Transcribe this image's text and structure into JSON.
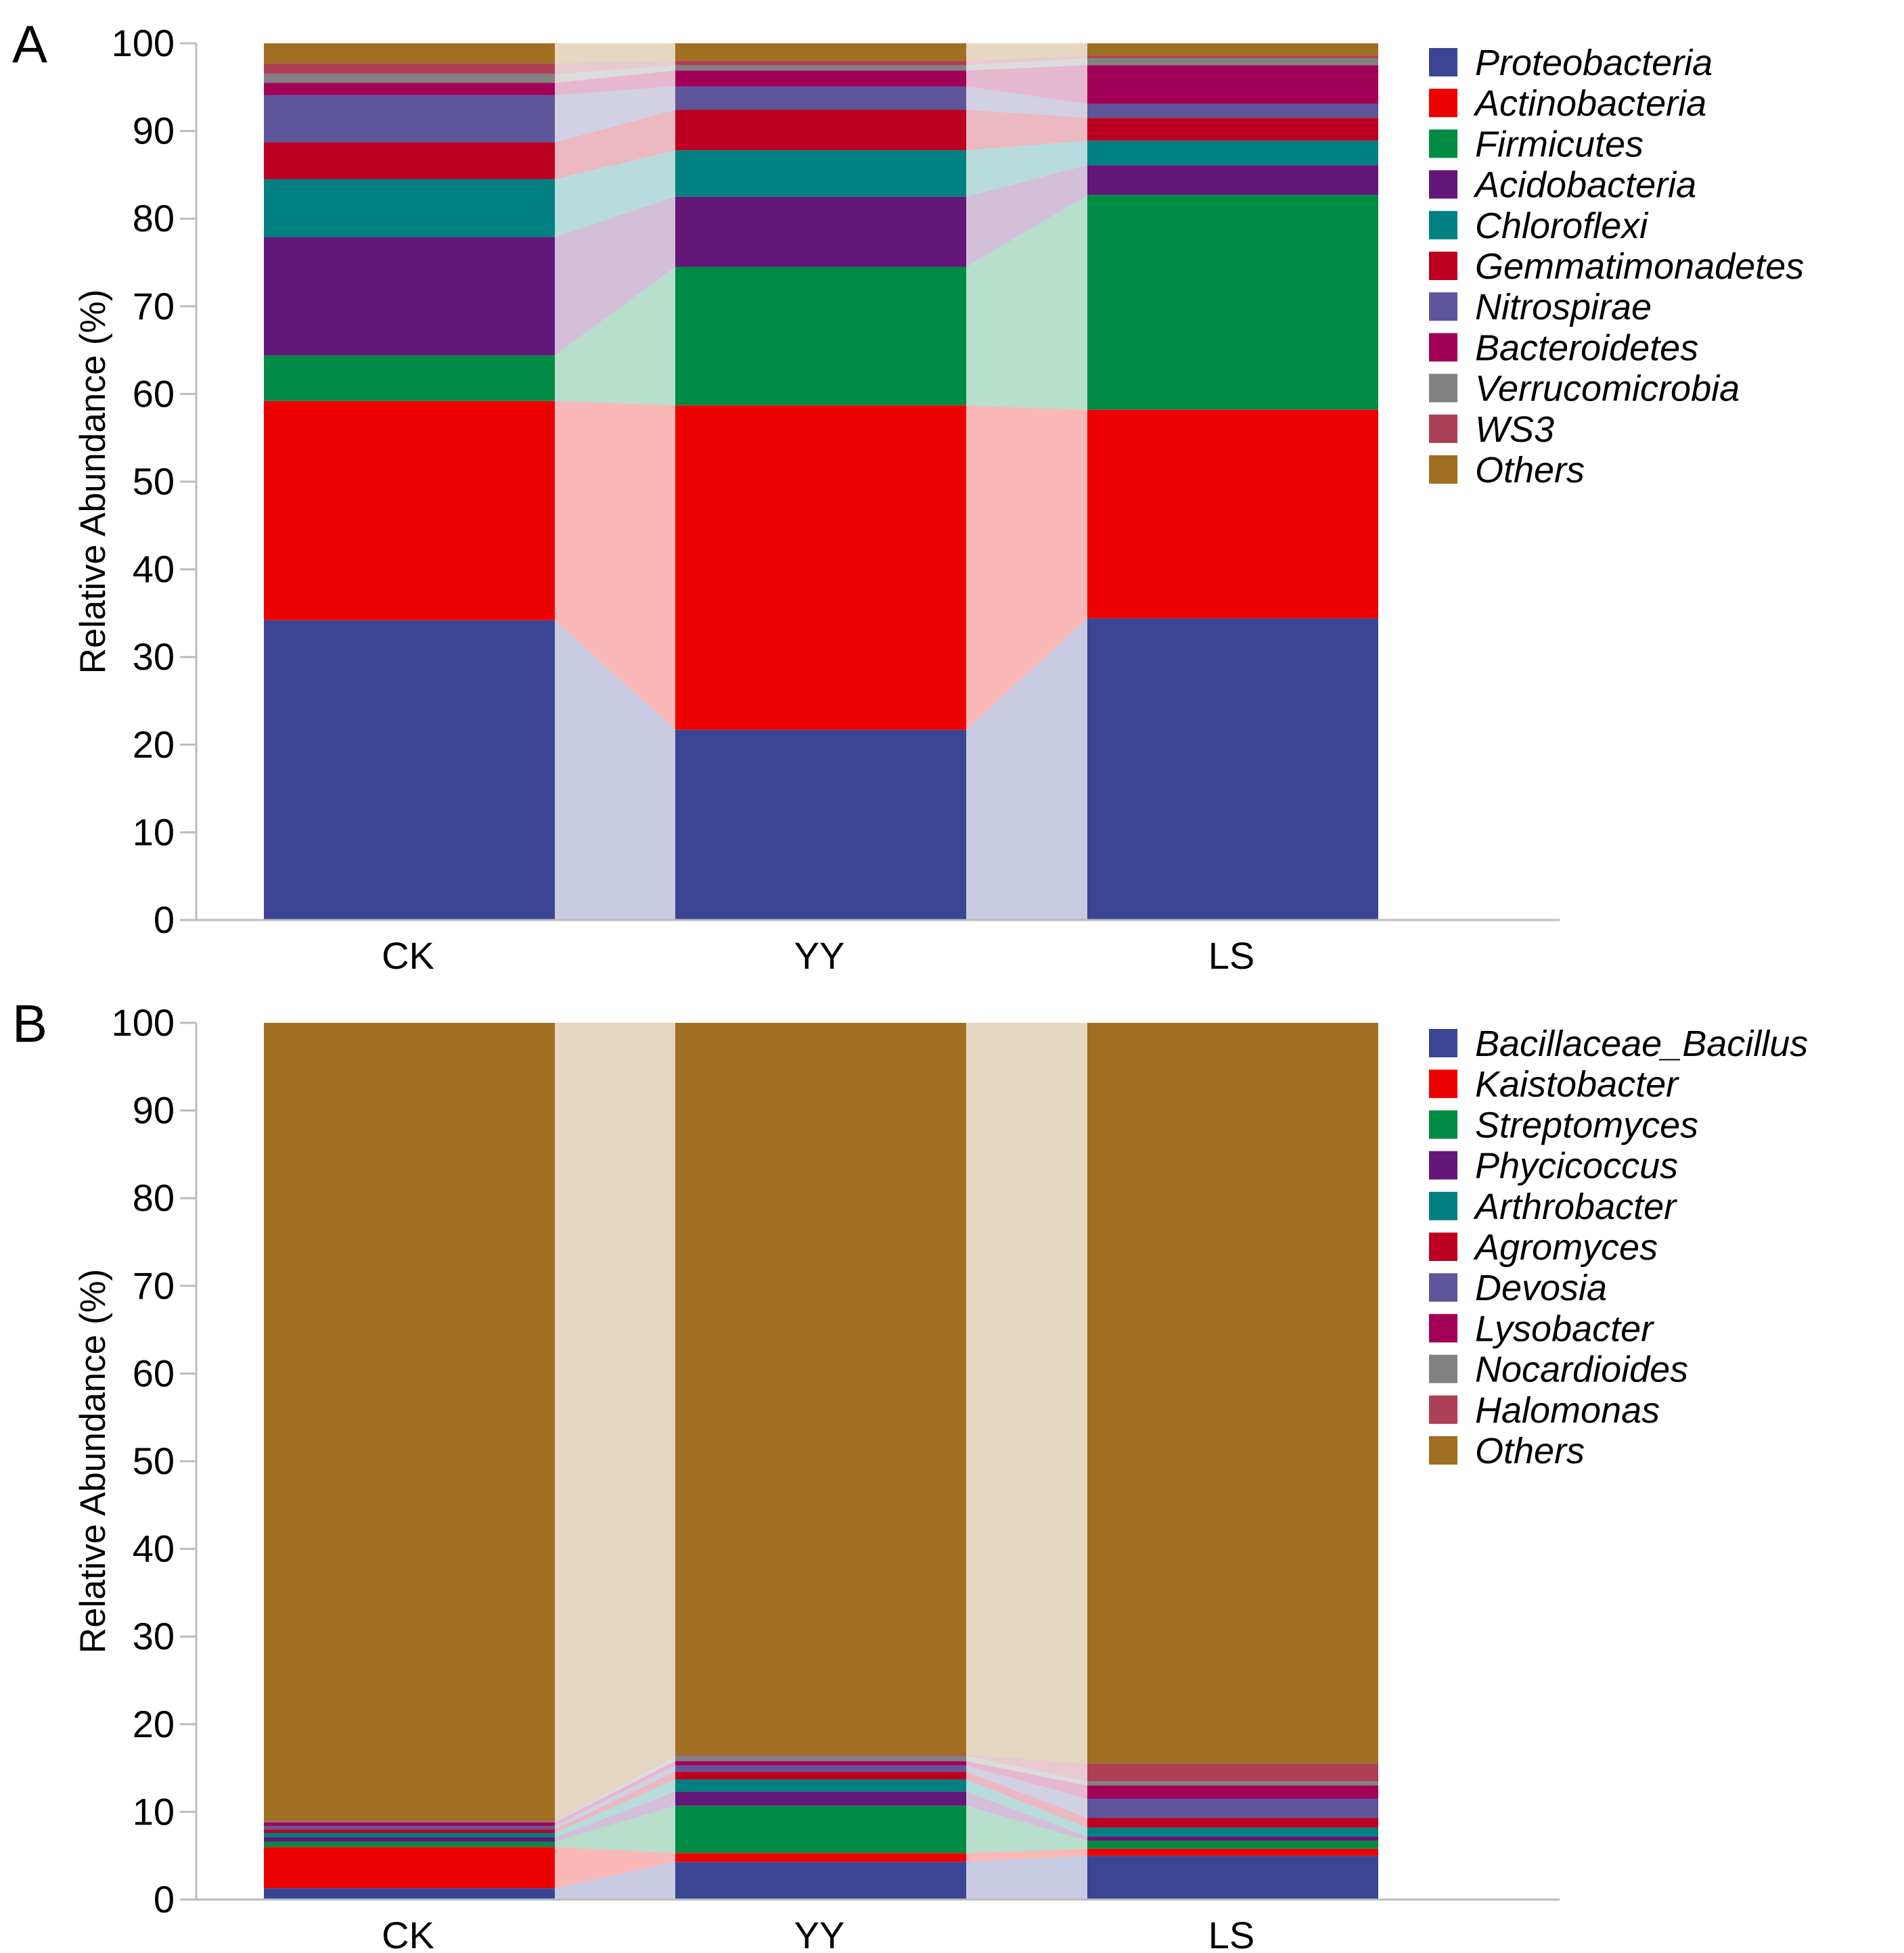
{
  "chart_data": [
    {
      "panel_label": "A",
      "type": "stacked-bar-with-flow",
      "ylabel": "Relative Abundance (%)",
      "ylim": [
        0,
        100
      ],
      "yticks": [
        "0",
        "10",
        "20",
        "30",
        "40",
        "50",
        "60",
        "70",
        "80",
        "90",
        "100"
      ],
      "categories": [
        "CK",
        "YY",
        "LS"
      ],
      "series": [
        {
          "name": "Proteobacteria",
          "color": "#3a4694",
          "values": [
            34.2,
            21.7,
            34.4
          ]
        },
        {
          "name": "Actinobacteria",
          "color": "#ed0000",
          "values": [
            25.0,
            37.0,
            23.8
          ]
        },
        {
          "name": "Firmicutes",
          "color": "#008b45",
          "values": [
            5.2,
            15.8,
            24.5
          ]
        },
        {
          "name": "Acidobacteria",
          "color": "#631879",
          "values": [
            13.5,
            8.0,
            3.4
          ]
        },
        {
          "name": "Chloroflexi",
          "color": "#008080",
          "values": [
            6.6,
            5.3,
            2.8
          ]
        },
        {
          "name": "Gemmatimonadetes",
          "color": "#bb0021",
          "values": [
            4.2,
            4.6,
            2.6
          ]
        },
        {
          "name": "Nitrospirae",
          "color": "#5f559b",
          "values": [
            5.4,
            2.7,
            1.6
          ]
        },
        {
          "name": "Bacteroidetes",
          "color": "#a20056",
          "values": [
            1.4,
            1.8,
            4.4
          ]
        },
        {
          "name": "Verrucomicrobia",
          "color": "#808180",
          "values": [
            1.0,
            0.6,
            0.8
          ]
        },
        {
          "name": "WS3",
          "color": "#ad3f56",
          "values": [
            1.2,
            0.5,
            0.3
          ]
        },
        {
          "name": "Others",
          "color": "#a16f21",
          "values": [
            2.3,
            2.0,
            1.4
          ]
        }
      ]
    },
    {
      "panel_label": "B",
      "type": "stacked-bar-with-flow",
      "ylabel": "Relative Abundance (%)",
      "ylim": [
        0,
        100
      ],
      "yticks": [
        "0",
        "10",
        "20",
        "30",
        "40",
        "50",
        "60",
        "70",
        "80",
        "90",
        "100"
      ],
      "categories": [
        "CK",
        "YY",
        "LS"
      ],
      "series": [
        {
          "name": "Bacillaceae_Bacillus",
          "color": "#3a4694",
          "values": [
            1.3,
            4.3,
            5.0
          ]
        },
        {
          "name": "Kaistobacter",
          "color": "#ed0000",
          "values": [
            4.7,
            1.0,
            0.8
          ]
        },
        {
          "name": "Streptomyces",
          "color": "#008b45",
          "values": [
            0.6,
            5.4,
            0.9
          ]
        },
        {
          "name": "Phycicoccus",
          "color": "#631879",
          "values": [
            0.5,
            1.6,
            0.5
          ]
        },
        {
          "name": "Arthrobacter",
          "color": "#008080",
          "values": [
            0.5,
            1.4,
            1.0
          ]
        },
        {
          "name": "Agromyces",
          "color": "#bb0021",
          "values": [
            0.4,
            0.9,
            1.1
          ]
        },
        {
          "name": "Devosia",
          "color": "#5f559b",
          "values": [
            0.4,
            0.7,
            2.2
          ]
        },
        {
          "name": "Lysobacter",
          "color": "#a20056",
          "values": [
            0.4,
            0.5,
            1.5
          ]
        },
        {
          "name": "Nocardioides",
          "color": "#808180",
          "values": [
            0.1,
            0.6,
            0.5
          ]
        },
        {
          "name": "Halomonas",
          "color": "#ad3f56",
          "values": [
            0.1,
            0.1,
            2.0
          ]
        },
        {
          "name": "Others",
          "color": "#a16f21",
          "values": [
            91.0,
            83.5,
            84.5
          ]
        }
      ]
    }
  ]
}
